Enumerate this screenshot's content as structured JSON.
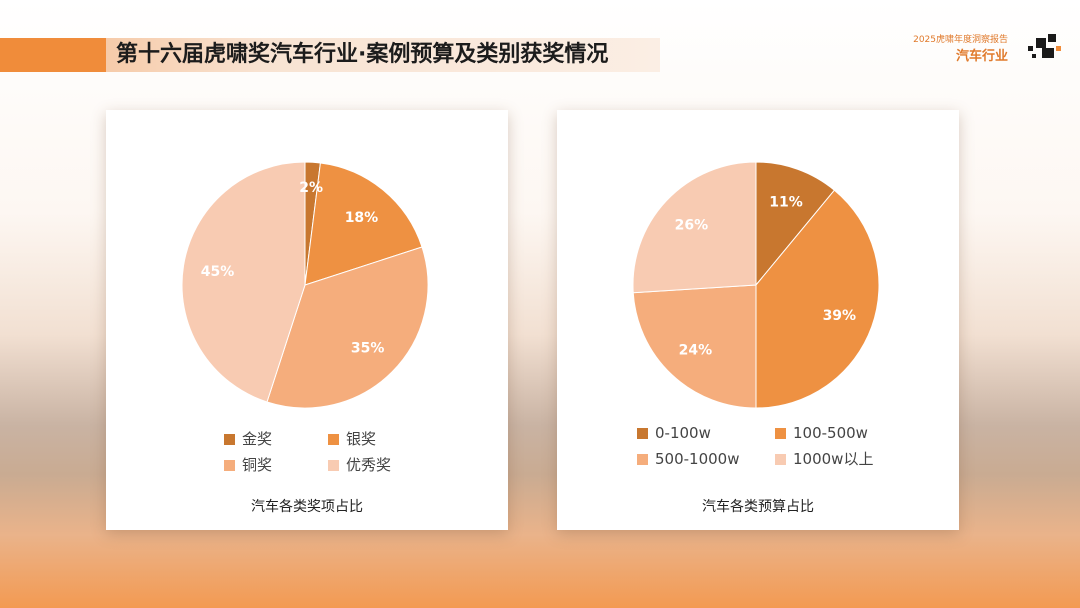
{
  "header": {
    "title": "第十六届虎啸奖汽车行业·案例预算及类别获奖情况",
    "brand_sub": "2025虎啸年度洞察报告",
    "brand_main": "汽车行业",
    "accent_color": "#f08c3a"
  },
  "chart_data": [
    {
      "type": "pie",
      "title": "汽车各类奖项占比",
      "categories": [
        "金奖",
        "银奖",
        "铜奖",
        "优秀奖"
      ],
      "values": [
        2,
        18,
        35,
        45
      ],
      "labels": [
        "2%",
        "18%",
        "35%",
        "45%"
      ],
      "colors": [
        "#c8772f",
        "#ee9142",
        "#f5ad7c",
        "#f8cbb2"
      ],
      "legend": "bottom"
    },
    {
      "type": "pie",
      "title": "汽车各类预算占比",
      "categories": [
        "0-100w",
        "100-500w",
        "500-1000w",
        "1000w以上"
      ],
      "values": [
        11,
        39,
        24,
        26
      ],
      "labels": [
        "11%",
        "39%",
        "24%",
        "26%"
      ],
      "colors": [
        "#c8772f",
        "#ee9142",
        "#f5ad7c",
        "#f8cbb2"
      ],
      "legend": "bottom"
    }
  ]
}
